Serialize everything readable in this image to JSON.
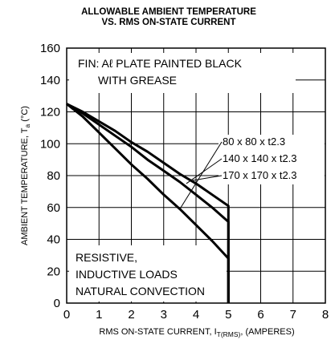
{
  "chart_data": {
    "type": "line",
    "title_lines": [
      "ALLOWABLE AMBIENT TEMPERATURE",
      "VS. RMS ON-STATE CURRENT"
    ],
    "xlabel_parts": {
      "prefix": "RMS ON-STATE CURRENT, I",
      "subscript": "T(RMS)",
      "suffix": ", (AMPERES)"
    },
    "ylabel_parts": {
      "prefix": "AMBIENT TEMPERATURE, T",
      "subscript": "a",
      "suffix": " (°C)"
    },
    "xlim": [
      0,
      8
    ],
    "ylim": [
      0,
      160
    ],
    "x_ticks": [
      0,
      1,
      2,
      3,
      4,
      5,
      6,
      7,
      8
    ],
    "y_ticks": [
      0,
      20,
      40,
      60,
      80,
      100,
      120,
      140,
      160
    ],
    "grid": true,
    "annotations": {
      "fin_lines": [
        "FIN: Aℓ PLATE PAINTED BLACK",
        "WITH GREASE"
      ],
      "load_lines": [
        "RESISTIVE,",
        "INDUCTIVE LOADS",
        "NATURAL CONVECTION"
      ]
    },
    "series": [
      {
        "name": "80 x 80 x t2.3",
        "x": [
          0,
          0.5,
          1,
          1.5,
          2,
          2.5,
          3,
          3.5,
          4,
          4.5,
          5,
          5,
          5
        ],
        "y": [
          125,
          117,
          107,
          97,
          87,
          78,
          68,
          59,
          49,
          39,
          28,
          20,
          0
        ]
      },
      {
        "name": "140 x 140 x t2.3",
        "x": [
          0,
          0.5,
          1,
          1.5,
          2,
          2.5,
          3,
          3.5,
          4,
          4.5,
          5,
          5
        ],
        "y": [
          125,
          119,
          112,
          105,
          98,
          90,
          83,
          76,
          68,
          60,
          51,
          0
        ]
      },
      {
        "name": "170 x 170 x t2.3",
        "x": [
          0,
          0.5,
          1,
          1.5,
          2,
          2.5,
          3,
          3.5,
          4,
          4.5,
          5,
          5
        ],
        "y": [
          125,
          120,
          114,
          108,
          101,
          95,
          88,
          81,
          75,
          68,
          61,
          0
        ]
      }
    ]
  }
}
